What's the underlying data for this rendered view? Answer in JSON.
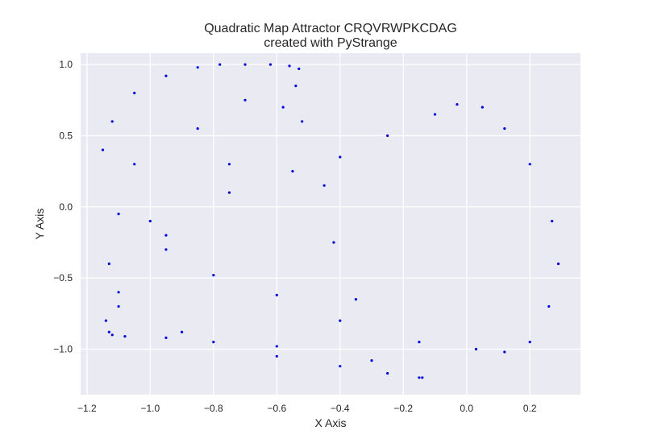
{
  "chart_data": {
    "type": "scatter",
    "title": "Quadratic Map Attractor CRQVRWPKCDAG",
    "subtitle": "created with PyStrange",
    "xlabel": "X Axis",
    "ylabel": "Y Axis",
    "xlim": [
      -1.22,
      0.36
    ],
    "ylim": [
      -1.32,
      1.08
    ],
    "xticks": [
      -1.2,
      -1.0,
      -0.8,
      -0.6,
      -0.4,
      -0.2,
      0.0,
      0.2
    ],
    "xtick_labels": [
      "−1.2",
      "−1.0",
      "−0.8",
      "−0.6",
      "−0.4",
      "−0.2",
      "0.0",
      "0.2"
    ],
    "yticks": [
      1.0,
      0.5,
      0.0,
      -0.5,
      -1.0
    ],
    "ytick_labels": [
      "1.0",
      "0.5",
      "0.0",
      "−0.5",
      "−1.0"
    ],
    "grid": true,
    "style": "seaborn",
    "colors": {
      "points": "#0000ff",
      "plot_bg": "#eaeaf2",
      "grid": "#ffffff",
      "text": "#262626"
    },
    "series": [
      {
        "marker_color": "#0000ff",
        "x": [
          -1.15,
          -1.12,
          -1.05,
          -0.95,
          -0.85,
          -0.78,
          -0.7,
          -0.62,
          -0.56,
          -0.53,
          -0.54,
          -0.58,
          -0.75,
          -0.95,
          -1.1,
          -1.14,
          -1.13,
          -1.12,
          -1.08,
          -0.95,
          -0.8,
          -0.6,
          -0.4,
          -0.25,
          -0.15,
          -0.14,
          -0.3,
          -0.6,
          -0.9,
          -1.1,
          -1.13,
          -1.0,
          -0.75,
          -0.55,
          -0.4,
          -0.25,
          -0.1,
          -0.03,
          0.05,
          0.12,
          0.2,
          0.27,
          0.29,
          0.26,
          0.2,
          0.12,
          0.03,
          -0.15,
          -0.4,
          -0.6,
          -0.8,
          -0.95,
          -1.1,
          -0.45,
          -0.42,
          -0.52,
          -0.7,
          -0.85,
          -1.05,
          -0.35
        ],
        "y": [
          0.4,
          0.6,
          0.8,
          0.92,
          0.98,
          1.0,
          1.0,
          1.0,
          0.99,
          0.97,
          0.85,
          0.7,
          0.3,
          -0.2,
          -0.6,
          -0.8,
          -0.88,
          -0.9,
          -0.91,
          -0.92,
          -0.95,
          -1.05,
          -1.12,
          -1.17,
          -1.2,
          -1.2,
          -1.08,
          -0.98,
          -0.88,
          -0.7,
          -0.4,
          -0.1,
          0.1,
          0.25,
          0.35,
          0.5,
          0.65,
          0.72,
          0.7,
          0.55,
          0.3,
          -0.1,
          -0.4,
          -0.7,
          -0.95,
          -1.02,
          -1.0,
          -0.95,
          -0.8,
          -0.62,
          -0.48,
          -0.3,
          -0.05,
          0.15,
          -0.25,
          0.6,
          0.75,
          0.55,
          0.3,
          -0.65
        ]
      }
    ]
  }
}
